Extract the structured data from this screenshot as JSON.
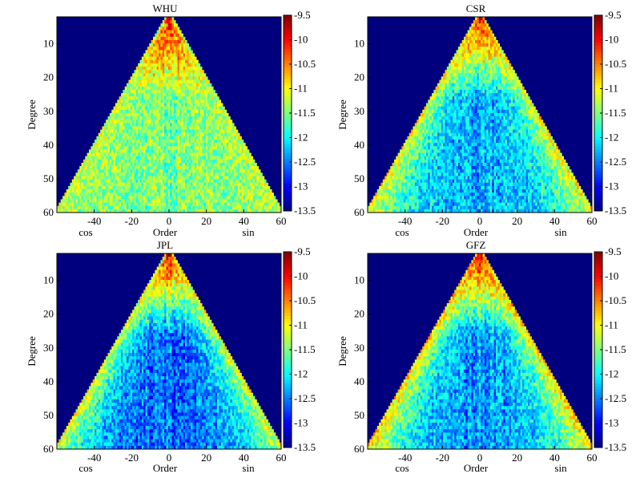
{
  "colorbar": {
    "ticks": [
      "-9.5",
      "-10",
      "-10.5",
      "-11",
      "-11.5",
      "-12",
      "-12.5",
      "-13",
      "-13.5"
    ],
    "range": [
      -13.5,
      -9.5
    ],
    "colormap": "jet"
  },
  "chart_data": [
    {
      "type": "heatmap",
      "title": "WHU",
      "xlabel": "Order",
      "ylabel": "Degree",
      "x_side_labels": [
        "cos",
        "sin"
      ],
      "xlim": [
        -60,
        60
      ],
      "ylim": [
        2,
        60
      ],
      "xticks": [
        "-40",
        "-20",
        "0",
        "20",
        "40",
        "60"
      ],
      "yticks": [
        "10",
        "20",
        "30",
        "40",
        "50",
        "60"
      ],
      "value_range": [
        -13.5,
        -9.5
      ],
      "background_color": "#00007f",
      "summary": {
        "low_degree_value": -10.0,
        "high_degree_value": -11.5,
        "edge_value": -11.2
      }
    },
    {
      "type": "heatmap",
      "title": "CSR",
      "xlabel": "Order",
      "ylabel": "Degree",
      "x_side_labels": [
        "cos",
        "sin"
      ],
      "xlim": [
        -60,
        60
      ],
      "ylim": [
        2,
        60
      ],
      "xticks": [
        "-40",
        "-20",
        "0",
        "20",
        "40",
        "60"
      ],
      "yticks": [
        "10",
        "20",
        "30",
        "40",
        "50",
        "60"
      ],
      "value_range": [
        -13.5,
        -9.5
      ],
      "background_color": "#00007f",
      "summary": {
        "low_degree_value": -10.0,
        "high_degree_value": -12.3,
        "edge_value": -11.0
      }
    },
    {
      "type": "heatmap",
      "title": "JPL",
      "xlabel": "Order",
      "ylabel": "Degree",
      "x_side_labels": [
        "cos",
        "sin"
      ],
      "xlim": [
        -60,
        60
      ],
      "ylim": [
        2,
        60
      ],
      "xticks": [
        "-40",
        "-20",
        "0",
        "20",
        "40",
        "60"
      ],
      "yticks": [
        "10",
        "20",
        "30",
        "40",
        "50",
        "60"
      ],
      "value_range": [
        -13.5,
        -9.5
      ],
      "background_color": "#00007f",
      "summary": {
        "low_degree_value": -10.0,
        "high_degree_value": -12.6,
        "edge_value": -11.1
      }
    },
    {
      "type": "heatmap",
      "title": "GFZ",
      "xlabel": "Order",
      "ylabel": "Degree",
      "x_side_labels": [
        "cos",
        "sin"
      ],
      "xlim": [
        -60,
        60
      ],
      "ylim": [
        2,
        60
      ],
      "xticks": [
        "-40",
        "-20",
        "0",
        "20",
        "40",
        "60"
      ],
      "yticks": [
        "10",
        "20",
        "30",
        "40",
        "50",
        "60"
      ],
      "value_range": [
        -13.5,
        -9.5
      ],
      "background_color": "#00007f",
      "summary": {
        "low_degree_value": -10.0,
        "high_degree_value": -12.4,
        "edge_value": -10.8
      }
    }
  ]
}
